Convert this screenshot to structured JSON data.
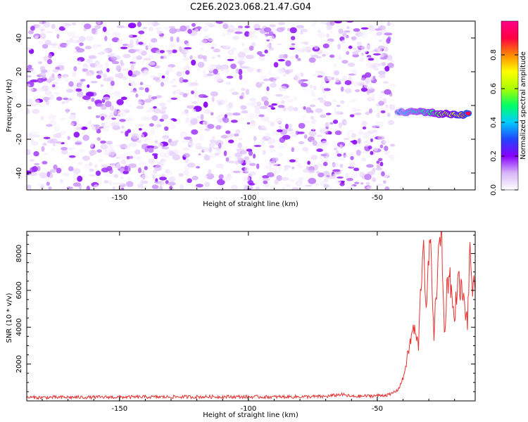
{
  "title": "C2E6.2023.068.21.47.G04",
  "chart_data": [
    {
      "type": "heatmap",
      "xlabel": "Height of straight line (km)",
      "ylabel": "Frequency (Hz)",
      "xlim": [
        -186,
        -12
      ],
      "ylim": [
        -50,
        50
      ],
      "xticks": [
        -150,
        -100,
        -50
      ],
      "xtick_labels": [
        "-150",
        "-100",
        "-50"
      ],
      "yticks": [
        -40,
        -20,
        0,
        20,
        40
      ],
      "ytick_labels": [
        "-40",
        "-20",
        "0",
        "20",
        "40"
      ],
      "colorbar": {
        "label": "Normalized spectral amplitude",
        "range": [
          0,
          1
        ],
        "ticks": [
          0.0,
          0.2,
          0.4,
          0.6,
          0.8
        ],
        "tick_labels": [
          "0.0",
          "0.2",
          "0.4",
          "0.6",
          "0.8"
        ],
        "colors": [
          "#ffffff",
          "#d8b6f8",
          "#8800ff",
          "#2244ff",
          "#00ccff",
          "#00ff66",
          "#aaff00",
          "#ffff00",
          "#ff8800",
          "#ff0044",
          "#ff0088"
        ]
      },
      "noise_region": {
        "x_range": [
          -186,
          -44
        ],
        "freq_range": [
          -50,
          50
        ],
        "amplitude_range": [
          0.02,
          0.2
        ]
      },
      "signal_track": [
        {
          "x": -42,
          "freq": -4,
          "amp": 0.32
        },
        {
          "x": -38,
          "freq": -4,
          "amp": 0.42
        },
        {
          "x": -34,
          "freq": -3.5,
          "amp": 0.45
        },
        {
          "x": -30,
          "freq": -4,
          "amp": 0.48
        },
        {
          "x": -26,
          "freq": -5,
          "amp": 0.55
        },
        {
          "x": -22,
          "freq": -5,
          "amp": 0.6
        },
        {
          "x": -18,
          "freq": -5.5,
          "amp": 0.75
        },
        {
          "x": -14,
          "freq": -5,
          "amp": 0.95
        }
      ],
      "grid": false
    },
    {
      "type": "line",
      "xlabel": "Height of straight line (km)",
      "ylabel": "SNR (10 * v/v)",
      "xlim": [
        -186,
        -12
      ],
      "ylim": [
        0,
        9200
      ],
      "xticks": [
        -150,
        -100,
        -50
      ],
      "xtick_labels": [
        "-150",
        "-100",
        "-50"
      ],
      "yticks": [
        2000,
        4000,
        6000,
        8000
      ],
      "ytick_labels": [
        "2000",
        "4000",
        "6000",
        "8000"
      ],
      "color": "#e63232",
      "grid": false,
      "series": [
        {
          "x": [
            -186,
            -170,
            -150,
            -130,
            -110,
            -90,
            -70,
            -64,
            -60,
            -50,
            -45,
            -42,
            -40,
            -38,
            -36,
            -34,
            -33,
            -32,
            -31,
            -30,
            -29,
            -28,
            -27,
            -26,
            -25,
            -24,
            -23,
            -22,
            -21,
            -20,
            -19,
            -18,
            -17,
            -16,
            -15,
            -14,
            -13,
            -12
          ],
          "y": [
            150,
            160,
            170,
            180,
            190,
            180,
            200,
            320,
            200,
            250,
            300,
            600,
            1200,
            2600,
            4000,
            3000,
            6500,
            9000,
            4500,
            8000,
            7800,
            3500,
            6200,
            8200,
            9200,
            3500,
            6000,
            7200,
            5500,
            4200,
            6500,
            6300,
            5800,
            5000,
            4300,
            8000,
            6200,
            6000
          ]
        }
      ]
    }
  ]
}
